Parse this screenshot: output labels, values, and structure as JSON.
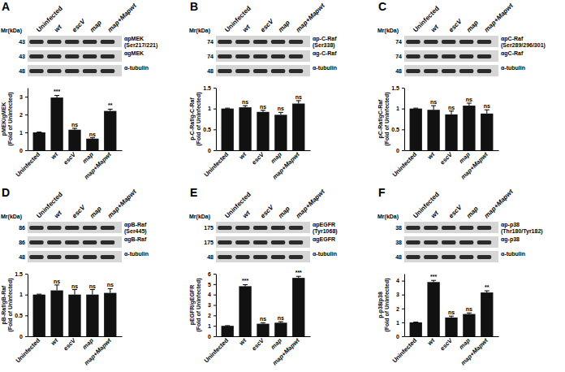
{
  "chart_data": [
    {
      "type": "bar",
      "panel": "A",
      "mr_header": "Mr(kDa)",
      "blot_labels": [
        [
          "αpMEK",
          "(Ser217/221)"
        ],
        [
          "αgMEK"
        ],
        [
          "α-tubulin"
        ]
      ],
      "mr_values": [
        43,
        43,
        48
      ],
      "y_label": [
        "pMEK/gMEK",
        "(Fold of Uninfected)"
      ],
      "categories": [
        "Uninfected",
        "wt",
        "escV",
        "map",
        "map+Mapwt"
      ],
      "values": [
        1,
        2.95,
        1.15,
        0.65,
        2.2
      ],
      "errors": [
        0.02,
        0.12,
        0.08,
        0.05,
        0.1
      ],
      "significance": [
        null,
        "***",
        "ns",
        "ns",
        "**"
      ],
      "color": "#111111",
      "ylim": [
        0,
        3.5
      ],
      "yticks": [
        0,
        1,
        2,
        3
      ]
    },
    {
      "type": "bar",
      "panel": "B",
      "mr_header": "Mr(kDa)",
      "blot_labels": [
        [
          "αp-C-Raf",
          "(Ser338)"
        ],
        [
          "αg-C-Raf"
        ],
        [
          "α-tubulin"
        ]
      ],
      "mr_values": [
        74,
        74,
        48
      ],
      "y_label": [
        "p-C-Raf/g-C-Raf",
        "(Fold of Uninfected)"
      ],
      "categories": [
        "Uninfected",
        "wt",
        "escV",
        "map",
        "map+Mapwt"
      ],
      "values": [
        1,
        1.03,
        0.92,
        0.85,
        1.12
      ],
      "errors": [
        0.01,
        0.04,
        0.04,
        0.06,
        0.07
      ],
      "significance": [
        null,
        "ns",
        "ns",
        "ns",
        "ns"
      ],
      "color": "#111111",
      "ylim": [
        0,
        1.5
      ],
      "yticks": [
        0,
        0.5,
        1,
        1.5
      ]
    },
    {
      "type": "bar",
      "panel": "C",
      "mr_header": "Mr(kDa)",
      "blot_labels": [
        [
          "αpC-Raf",
          "(Ser289/296/301)"
        ],
        [
          "αgC-Raf"
        ],
        [
          "α-tubulin"
        ]
      ],
      "mr_values": [
        74,
        74,
        48
      ],
      "y_label": [
        "pC-Raf/gC-Raf",
        "(Fold of Uninfected)"
      ],
      "categories": [
        "Uninfected",
        "wt",
        "escV",
        "map",
        "map+Mapwt"
      ],
      "values": [
        1,
        0.97,
        0.86,
        1.07,
        0.88
      ],
      "errors": [
        0.01,
        0.1,
        0.08,
        0.06,
        0.09
      ],
      "significance": [
        null,
        "ns",
        "ns",
        "ns",
        "ns"
      ],
      "color": "#111111",
      "ylim": [
        0,
        1.5
      ],
      "yticks": [
        0,
        0.5,
        1,
        1.5
      ]
    },
    {
      "type": "bar",
      "panel": "D",
      "mr_header": "Mr(kDa)",
      "blot_labels": [
        [
          "αpB-Raf",
          "(Ser445)"
        ],
        [
          "αgB-Raf"
        ],
        [
          "α-tubulin"
        ]
      ],
      "mr_values": [
        86,
        86,
        48
      ],
      "y_label": [
        "pB-Raf/gB-Raf",
        "(Fold of Uninfected)"
      ],
      "categories": [
        "Uninfected",
        "wt",
        "escV",
        "map",
        "map+Mapwt"
      ],
      "values": [
        1,
        1.1,
        1.0,
        1.0,
        1.04
      ],
      "errors": [
        0.01,
        0.13,
        0.12,
        0.12,
        0.1
      ],
      "significance": [
        null,
        "ns",
        "ns",
        "ns",
        "ns"
      ],
      "color": "#111111",
      "ylim": [
        0,
        1.5
      ],
      "yticks": [
        0,
        0.5,
        1,
        1.5
      ]
    },
    {
      "type": "bar",
      "panel": "E",
      "mr_header": "Mr(kDa)",
      "blot_labels": [
        [
          "αpEGFR",
          "(Tyr1068)"
        ],
        [
          "αgEGFR"
        ],
        [
          "α-tubulin"
        ]
      ],
      "mr_values": [
        175,
        175,
        48
      ],
      "y_label": [
        "pEGFR/gEGFR",
        "(Fold of Uninfected)"
      ],
      "categories": [
        "Uninfected",
        "wt",
        "escV",
        "map",
        "map+Mapwt"
      ],
      "values": [
        1,
        4.8,
        1.2,
        1.3,
        5.6
      ],
      "errors": [
        0.02,
        0.15,
        0.1,
        0.1,
        0.15
      ],
      "significance": [
        null,
        "***",
        "ns",
        "ns",
        "***"
      ],
      "color": "#111111",
      "ylim": [
        0,
        6
      ],
      "yticks": [
        0,
        1,
        2,
        3,
        4,
        5,
        6
      ]
    },
    {
      "type": "bar",
      "panel": "F",
      "mr_header": "Mr(kDa)",
      "blot_labels": [
        [
          "αp-p38",
          "(Thr180/Tyr182)"
        ],
        [
          "αg-p38"
        ],
        [
          "α-tubulin"
        ]
      ],
      "mr_values": [
        38,
        38,
        48
      ],
      "y_label": [
        "p-p38/p38",
        "(Fold of Uninfected)"
      ],
      "categories": [
        "Uninfected",
        "wt",
        "escV",
        "map",
        "map+Mapwt"
      ],
      "values": [
        1,
        3.9,
        1.35,
        1.6,
        3.15
      ],
      "errors": [
        0.02,
        0.12,
        0.1,
        0.08,
        0.12
      ],
      "significance": [
        null,
        "***",
        "ns",
        "ns",
        "**"
      ],
      "color": "#111111",
      "ylim": [
        0,
        4.5
      ],
      "yticks": [
        0,
        1,
        2,
        3,
        4
      ]
    }
  ]
}
